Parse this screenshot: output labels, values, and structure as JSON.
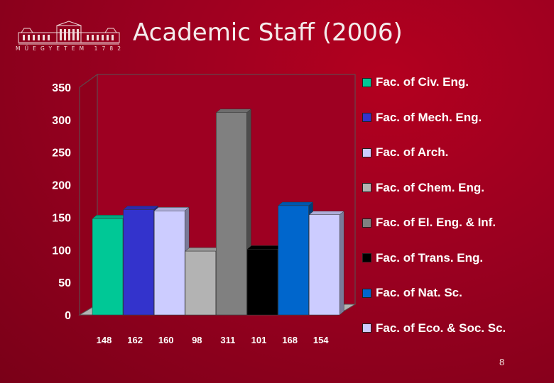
{
  "header": {
    "logo_text": "MŰEGYETEM 1782",
    "title": "Academic Staff (2006)"
  },
  "page_number": "8",
  "chart_data": {
    "type": "bar",
    "title": "Academic Staff (2006)",
    "categories": [
      "Fac. of Civ. Eng.",
      "Fac. of Mech. Eng.",
      "Fac. of Arch.",
      "Fac. of Chem. Eng.",
      "Fac. of El. Eng. & Inf.",
      "Fac. of Trans. Eng.",
      "Fac. of Nat. Sc.",
      "Fac. of Eco. & Soc. Sc."
    ],
    "values": [
      148,
      162,
      160,
      98,
      311,
      101,
      168,
      154
    ],
    "data_labels": [
      "148",
      "162",
      "160",
      "98",
      "311",
      "101",
      "168",
      "154"
    ],
    "colors": [
      "#00c896",
      "#3333cc",
      "#ccccff",
      "#b3b3b3",
      "#808080",
      "#000000",
      "#0066cc",
      "#ccccff"
    ],
    "yticks": [
      "0",
      "50",
      "100",
      "150",
      "200",
      "250",
      "300",
      "350"
    ],
    "ylim": [
      0,
      350
    ],
    "legend_position": "right",
    "grid": false,
    "style": "3d"
  }
}
